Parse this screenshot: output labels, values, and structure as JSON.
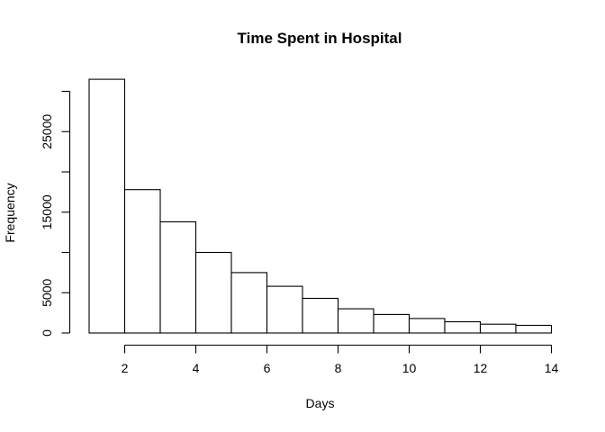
{
  "chart_data": {
    "type": "histogram",
    "title": "Time Spent in Hospital",
    "xlabel": "Days",
    "ylabel": "Frequency",
    "bin_start": 1,
    "bin_width": 1,
    "categories": [
      "1-2",
      "2-3",
      "3-4",
      "4-5",
      "5-6",
      "6-7",
      "7-8",
      "8-9",
      "9-10",
      "10-11",
      "11-12",
      "12-13",
      "13-14"
    ],
    "counts": [
      31500,
      17800,
      13800,
      10000,
      7500,
      5800,
      4300,
      3000,
      2300,
      1800,
      1400,
      1100,
      950
    ],
    "xlim": [
      1,
      14
    ],
    "ylim": [
      0,
      30000
    ],
    "x_ticks": [
      2,
      4,
      6,
      8,
      10,
      12,
      14
    ],
    "x_tick_labels": [
      "2",
      "4",
      "6",
      "8",
      "10",
      "12",
      "14"
    ],
    "y_ticks": [
      0,
      5000,
      10000,
      15000,
      20000,
      25000,
      30000
    ],
    "y_tick_labels": [
      "0",
      "5000",
      "",
      "15000",
      "",
      "25000",
      ""
    ],
    "grid": "off",
    "legend": "none",
    "colors": {
      "background": "#ffffff",
      "bar_fill": "#ffffff",
      "bar_stroke": "#000000",
      "axis": "#000000",
      "text": "#000000"
    }
  }
}
